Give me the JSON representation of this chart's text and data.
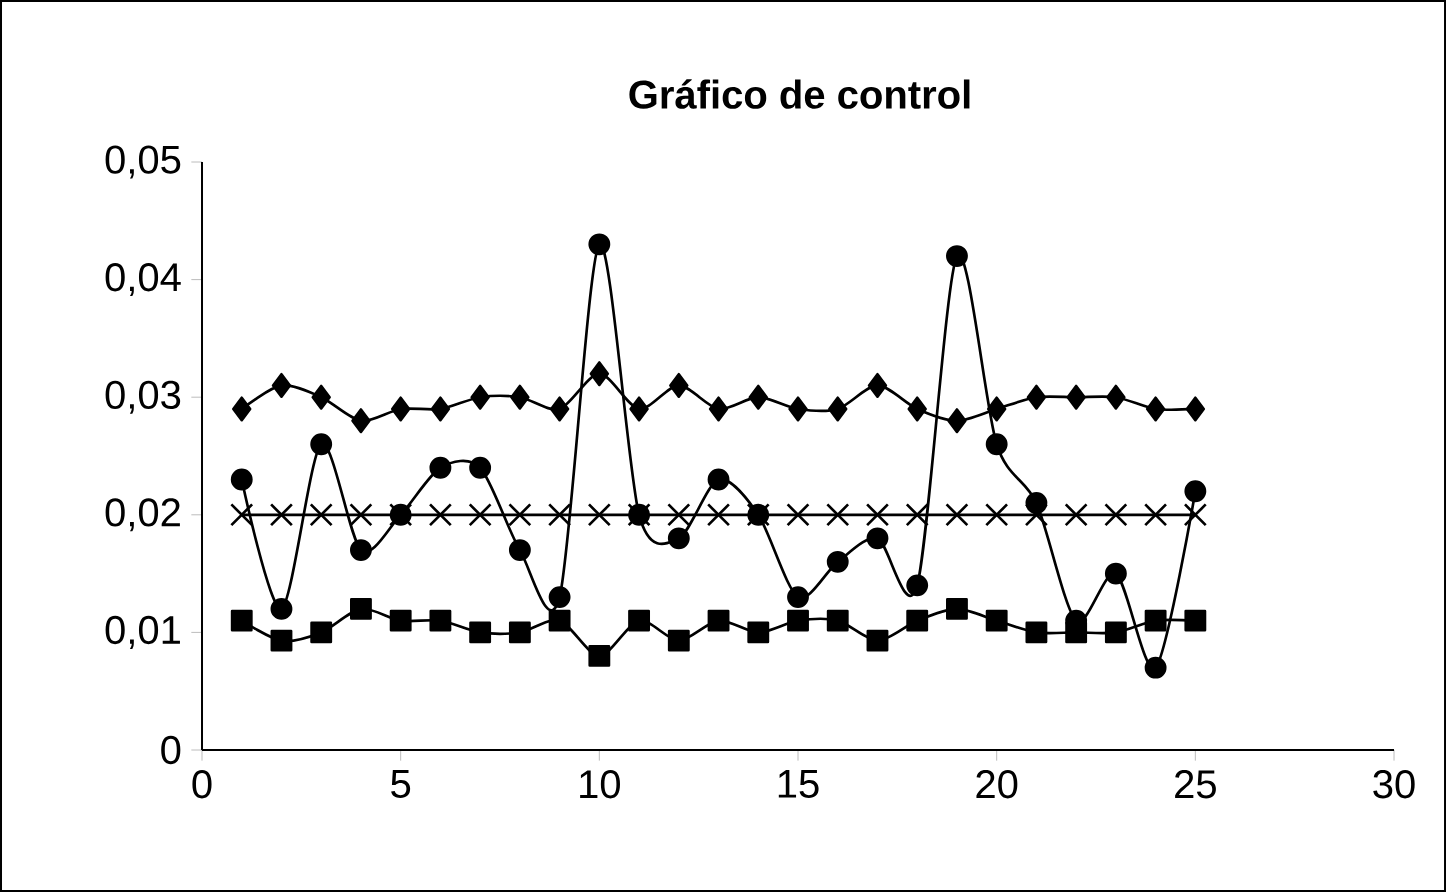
{
  "chart_data": {
    "type": "line",
    "title": "Gráfico de control",
    "x": [
      1,
      2,
      3,
      4,
      5,
      6,
      7,
      8,
      9,
      10,
      11,
      12,
      13,
      14,
      15,
      16,
      17,
      18,
      19,
      20,
      21,
      22,
      23,
      24,
      25
    ],
    "series": [
      {
        "color": "#000000",
        "marker": "diamond",
        "values": [
          0.029,
          0.031,
          0.03,
          0.028,
          0.029,
          0.029,
          0.03,
          0.03,
          0.029,
          0.032,
          0.029,
          0.031,
          0.029,
          0.03,
          0.029,
          0.029,
          0.031,
          0.029,
          0.028,
          0.029,
          0.03,
          0.03,
          0.03,
          0.029,
          0.029
        ]
      },
      {
        "color": "#000000",
        "marker": "square",
        "values": [
          0.011,
          0.0093,
          0.01,
          0.012,
          0.011,
          0.011,
          0.01,
          0.01,
          0.011,
          0.008,
          0.011,
          0.0093,
          0.011,
          0.01,
          0.011,
          0.011,
          0.0093,
          0.011,
          0.012,
          0.011,
          0.01,
          0.01,
          0.01,
          0.011,
          0.011
        ]
      },
      {
        "color": "#000000",
        "marker": "cross",
        "values": [
          0.02,
          0.02,
          0.02,
          0.02,
          0.02,
          0.02,
          0.02,
          0.02,
          0.02,
          0.02,
          0.02,
          0.02,
          0.02,
          0.02,
          0.02,
          0.02,
          0.02,
          0.02,
          0.02,
          0.02,
          0.02,
          0.02,
          0.02,
          0.02,
          0.02
        ]
      },
      {
        "color": "#000000",
        "marker": "circle",
        "values": [
          0.023,
          0.012,
          0.026,
          0.017,
          0.02,
          0.024,
          0.024,
          0.017,
          0.013,
          0.043,
          0.02,
          0.018,
          0.023,
          0.02,
          0.013,
          0.016,
          0.018,
          0.014,
          0.042,
          0.026,
          0.021,
          0.011,
          0.015,
          0.007,
          0.022
        ]
      }
    ],
    "xlim": [
      0,
      30
    ],
    "xticks": [
      0,
      5,
      10,
      15,
      20,
      25,
      30
    ],
    "ylim": [
      0,
      0.05
    ],
    "yticks": [
      0,
      {
        "value": 0.01,
        "label": "0,01"
      },
      {
        "value": 0.02,
        "label": "0,02"
      },
      {
        "value": 0.03,
        "label": "0,03"
      },
      {
        "value": 0.04,
        "label": "0,04"
      },
      {
        "value": 0.05,
        "label": "0,05"
      }
    ],
    "grid": false
  }
}
